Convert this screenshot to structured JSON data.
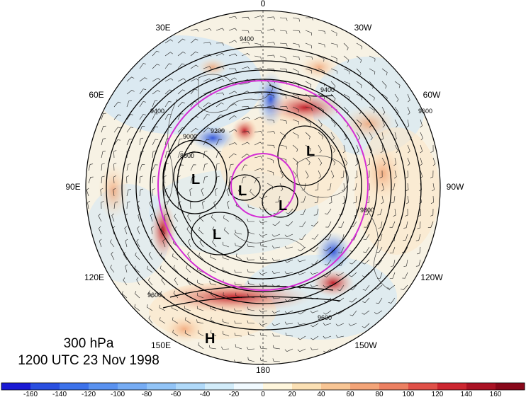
{
  "caption": {
    "level": "300 hPa",
    "time": "1200 UTC 23 Nov 1998"
  },
  "longitude_labels": {
    "top": "0",
    "bottom": "180",
    "upper_left": "30E",
    "upper_right": "30W",
    "left_high": "60E",
    "right_high": "60W",
    "left_mid": "90E",
    "right_mid": "90W",
    "left_low": "120E",
    "right_low": "120W",
    "lower_left": "150E",
    "lower_right": "150W"
  },
  "pressure_systems": [
    "L",
    "L",
    "L",
    "L",
    "L",
    "H"
  ],
  "contour_labels": [
    "8600",
    "9200",
    "9000",
    "9400",
    "9400",
    "9400",
    "9600",
    "9600",
    "9800",
    "9600"
  ],
  "colorbar": {
    "ticks": [
      "-160",
      "-140",
      "-120",
      "-100",
      "-80",
      "-60",
      "-40",
      "-20",
      "0",
      "20",
      "40",
      "60",
      "80",
      "100",
      "120",
      "140",
      "160"
    ],
    "colors": [
      "#1a1ad4",
      "#2a4fe0",
      "#3d72ea",
      "#5a92f0",
      "#76acf4",
      "#92c4f7",
      "#b0d9f9",
      "#d2ecfa",
      "#f1faff",
      "#fff6dc",
      "#fbe0b4",
      "#f8c594",
      "#f3a478",
      "#ec8062",
      "#e05048",
      "#cc2630",
      "#aa1224",
      "#88081a"
    ]
  }
}
